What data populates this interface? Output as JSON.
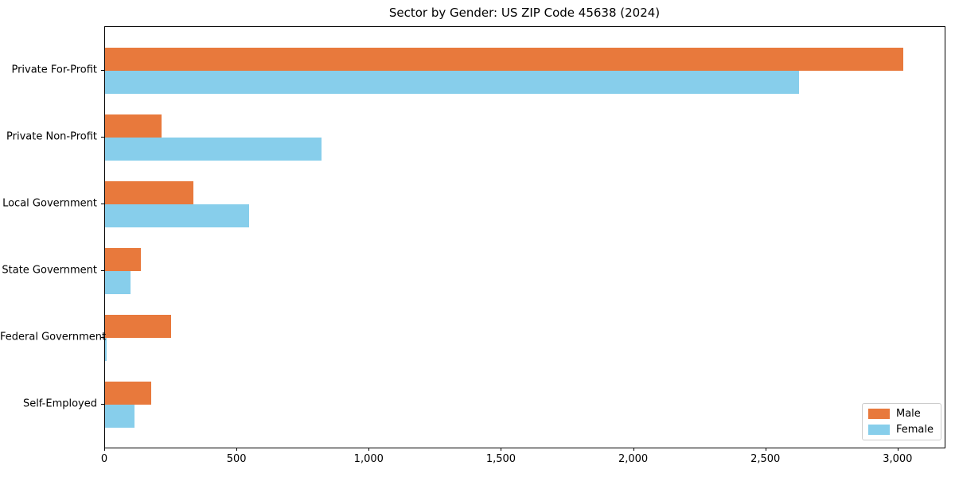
{
  "chart_data": {
    "type": "bar",
    "orientation": "horizontal",
    "title": "Sector by Gender: US ZIP Code 45638 (2024)",
    "categories": [
      "Private For-Profit",
      "Private Non-Profit",
      "Local Government",
      "State Government",
      "Federal Government",
      "Self-Employed"
    ],
    "series": [
      {
        "name": "Male",
        "color": "#e8793c",
        "values": [
          3020,
          215,
          335,
          135,
          250,
          175
        ]
      },
      {
        "name": "Female",
        "color": "#87ceeb",
        "values": [
          2625,
          820,
          545,
          95,
          7,
          110
        ]
      }
    ],
    "xlabel": "",
    "ylabel": "",
    "xlim": [
      0,
      3175
    ],
    "xticks": [
      0,
      500,
      1000,
      1500,
      2000,
      2500,
      3000
    ],
    "xtick_labels": [
      "0",
      "500",
      "1,000",
      "1,500",
      "2,000",
      "2,500",
      "3,000"
    ],
    "legend_position": "lower right",
    "grid": false
  }
}
